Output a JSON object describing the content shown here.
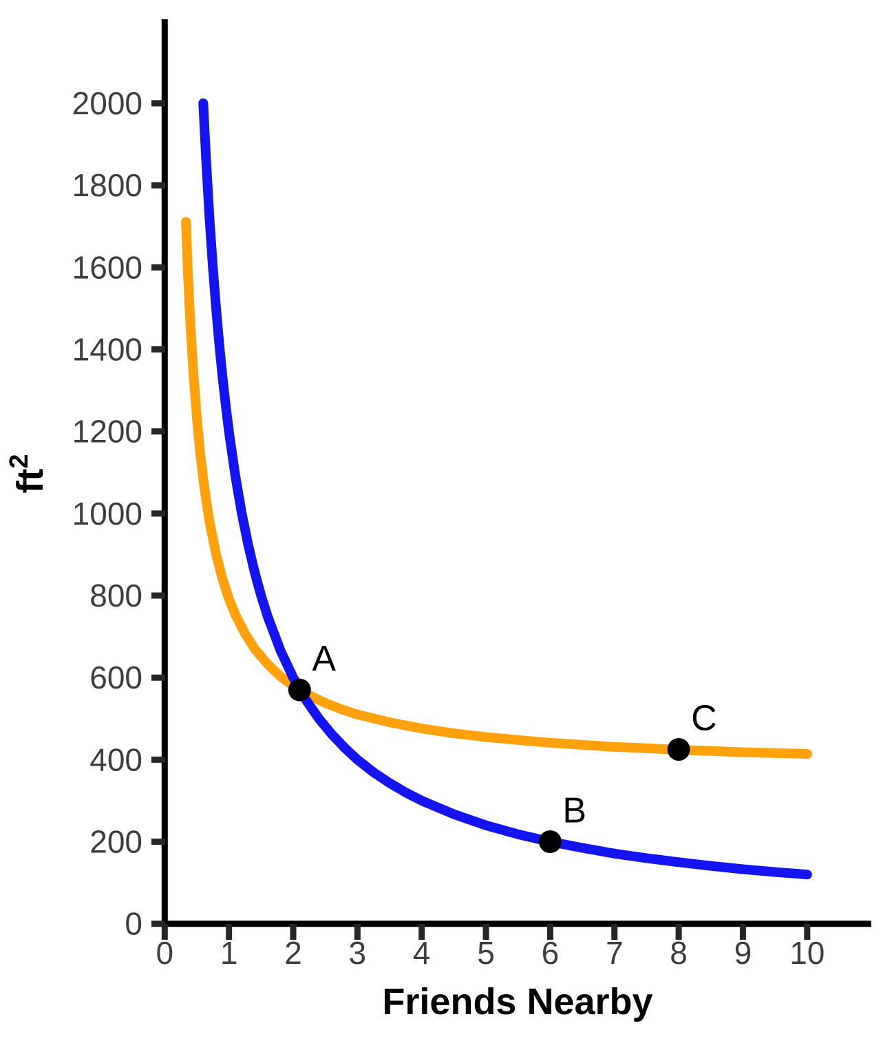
{
  "figure": {
    "background": "#ffffff",
    "axis_color": "#000000",
    "tick_color": "#262626",
    "tick_label_color": "#3d3d3d",
    "point_color": "#000000"
  },
  "chart_data": {
    "type": "line",
    "title": "",
    "xlabel": "Friends Nearby",
    "ylabel": "ft²",
    "ylabel_base": "ft",
    "ylabel_exp": "2",
    "xlim": [
      0,
      11
    ],
    "ylim": [
      0,
      2200
    ],
    "x_ticks": [
      0,
      1,
      2,
      3,
      4,
      5,
      6,
      7,
      8,
      9,
      10
    ],
    "y_ticks": [
      0,
      200,
      400,
      600,
      800,
      1000,
      1200,
      1400,
      1600,
      1800,
      2000
    ],
    "grid": false,
    "legend": false,
    "series": [
      {
        "name": "orange-curve",
        "color": "#FFA10D",
        "x": [
          0.33,
          0.36,
          0.4,
          0.45,
          0.5,
          0.55,
          0.6,
          0.65,
          0.7,
          0.8,
          0.9,
          1.0,
          1.1,
          1.25,
          1.4,
          1.6,
          1.8,
          2.0,
          2.25,
          2.5,
          2.75,
          3.0,
          3.5,
          4.0,
          4.5,
          5.0,
          5.5,
          6.0,
          6.5,
          7.0,
          7.5,
          8.0,
          8.5,
          9.0,
          9.5,
          10.0
        ],
        "y": [
          1711,
          1591,
          1462,
          1334,
          1233,
          1151,
          1084,
          1027,
          978,
          900,
          840,
          792,
          753,
          707,
          670,
          633,
          603,
          580,
          557,
          538,
          523,
          510,
          491,
          476,
          464,
          455,
          448,
          441,
          436,
          431,
          428,
          424,
          421,
          418,
          416,
          414
        ]
      },
      {
        "name": "blue-curve",
        "color": "#1414F0",
        "x": [
          0.6,
          0.65,
          0.7,
          0.75,
          0.8,
          0.85,
          0.9,
          0.95,
          1.0,
          1.1,
          1.2,
          1.3,
          1.4,
          1.5,
          1.6,
          1.8,
          2.0,
          2.2,
          2.4,
          2.6,
          2.8,
          3.0,
          3.25,
          3.5,
          3.75,
          4.0,
          4.5,
          5.0,
          5.5,
          6.0,
          6.5,
          7.0,
          7.5,
          8.0,
          8.5,
          9.0,
          9.5,
          10.0
        ],
        "y": [
          2000,
          1846,
          1714,
          1600,
          1500,
          1412,
          1333,
          1263,
          1200,
          1091,
          1000,
          923,
          857,
          800,
          750,
          667,
          600,
          545,
          500,
          462,
          429,
          400,
          369,
          343,
          320,
          300,
          267,
          240,
          218,
          200,
          185,
          171,
          160,
          150,
          141,
          133,
          126,
          120
        ]
      }
    ],
    "points": [
      {
        "label": "A",
        "x": 2.1,
        "y": 570
      },
      {
        "label": "B",
        "x": 6,
        "y": 200
      },
      {
        "label": "C",
        "x": 8,
        "y": 425
      }
    ]
  }
}
